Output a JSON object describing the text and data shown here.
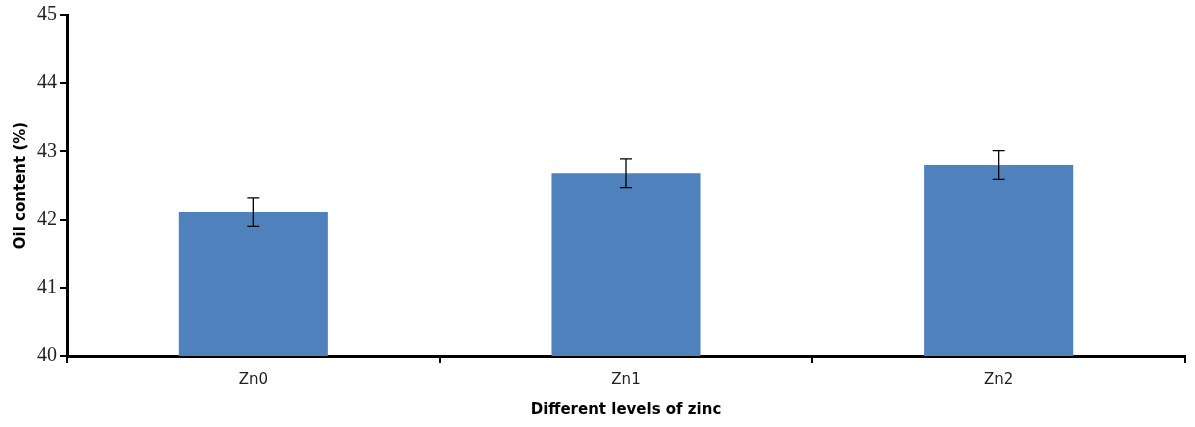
{
  "chart_data": {
    "type": "bar",
    "xlabel": "Different levels of zinc",
    "ylabel": "Oil content (%)",
    "categories": [
      "Zn0",
      "Zn1",
      "Zn2"
    ],
    "series": [
      {
        "color": "#4f81bd",
        "values": [
          42.11,
          42.68,
          42.8
        ],
        "errors": [
          0.21,
          0.21,
          0.21
        ]
      }
    ],
    "ylim": [
      40,
      45
    ],
    "yticks": [
      40,
      41,
      42,
      43,
      44,
      45
    ],
    "grid": false,
    "legend": false
  }
}
